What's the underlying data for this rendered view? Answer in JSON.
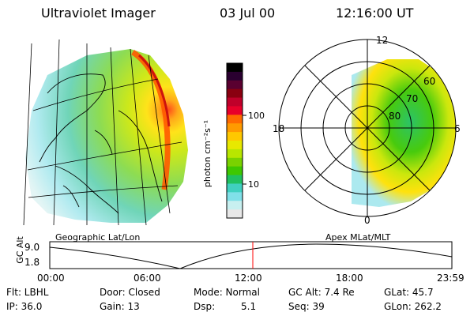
{
  "header": {
    "title": "Ultraviolet Imager",
    "date": "03 Jul 00",
    "time": "12:16:00 UT"
  },
  "colorbar": {
    "label": "photon cm⁻²s⁻¹",
    "ticks": [
      "100",
      "10"
    ],
    "colors": [
      "#000000",
      "#2a0030",
      "#5a0030",
      "#8a0010",
      "#c0002a",
      "#e8002a",
      "#ff6a00",
      "#ff9a00",
      "#ffc800",
      "#e8e800",
      "#b8e600",
      "#7ad200",
      "#3ec800",
      "#20c060",
      "#40d0c0",
      "#80e0e8",
      "#c8f0f0",
      "#e8e8e8"
    ]
  },
  "left_panel": {
    "label": "Geographic Lat/Lon"
  },
  "right_panel": {
    "label": "Apex  MLat/MLT",
    "mlt_labels": [
      "12",
      "18",
      "6",
      "0"
    ],
    "lat_labels": [
      "60",
      "70",
      "80"
    ]
  },
  "timeline": {
    "axis_title": "GC Alt",
    "y_ticks": [
      "9.0",
      "1.8"
    ],
    "x_ticks": [
      "00:00",
      "06:00",
      "12:00",
      "18:00",
      "23:59"
    ],
    "current_time_marker": "12:16",
    "marker_color": "#ff0000"
  },
  "info": {
    "row1": {
      "filter": "Flt: LBHL",
      "door": "Door: Closed",
      "mode": "Mode: Normal",
      "gc_alt": "GC Alt: 7.4 Re",
      "glat": "GLat:  45.7"
    },
    "row2": {
      "ip": "IP: 36.0",
      "gain": "Gain: 13",
      "dsp_label": "Dsp:",
      "dsp_value": "5.1",
      "seq": "Seq: 39",
      "glon": "GLon: 262.2"
    }
  }
}
